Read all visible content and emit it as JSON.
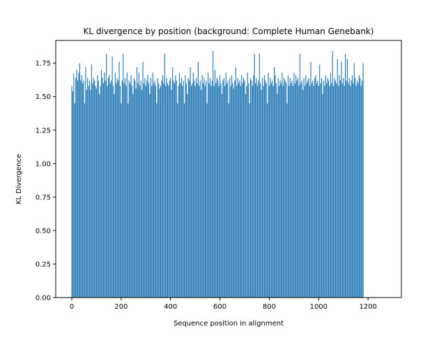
{
  "chart_data": {
    "type": "bar",
    "title": "KL divergence by position (background: Complete Human Genebank)",
    "xlabel": "Sequence position in alignment",
    "ylabel": "KL Divergence",
    "xlim": [
      -65,
      1335
    ],
    "ylim": [
      0,
      1.92
    ],
    "xticks": [
      0,
      200,
      400,
      600,
      800,
      1000,
      1200
    ],
    "xtick_labels": [
      "0",
      "200",
      "400",
      "600",
      "800",
      "1000",
      "1200"
    ],
    "yticks": [
      0,
      0.25,
      0.5,
      0.75,
      1.0,
      1.25,
      1.5,
      1.75
    ],
    "ytick_labels": [
      "0.00",
      "0.25",
      "0.50",
      "0.75",
      "1.00",
      "1.25",
      "1.50",
      "1.75"
    ],
    "grid": false,
    "bar_color": "#1f77b4",
    "series": [
      {
        "x_start": 0,
        "x_step": 4,
        "values": [
          1.58,
          1.54,
          1.67,
          1.45,
          1.64,
          1.7,
          1.62,
          1.68,
          1.75,
          1.62,
          1.66,
          1.6,
          1.62,
          1.45,
          1.72,
          1.55,
          1.64,
          1.58,
          1.62,
          1.55,
          1.74,
          1.6,
          1.64,
          1.62,
          1.58,
          1.56,
          1.66,
          1.62,
          1.52,
          1.58,
          1.7,
          1.64,
          1.6,
          1.68,
          1.62,
          1.82,
          1.58,
          1.64,
          1.66,
          1.6,
          1.62,
          1.8,
          1.58,
          1.52,
          1.68,
          1.6,
          1.64,
          1.62,
          1.76,
          1.58,
          1.45,
          1.62,
          1.82,
          1.6,
          1.64,
          1.58,
          1.68,
          1.45,
          1.62,
          1.6,
          1.66,
          1.58,
          1.52,
          1.64,
          1.62,
          1.56,
          1.72,
          1.6,
          1.68,
          1.58,
          1.62,
          1.55,
          1.76,
          1.6,
          1.64,
          1.58,
          1.62,
          1.66,
          1.6,
          1.52,
          1.64,
          1.58,
          1.68,
          1.6,
          1.62,
          1.58,
          1.45,
          1.64,
          1.6,
          1.56,
          1.58,
          1.62,
          1.66,
          1.6,
          1.82,
          1.58,
          1.64,
          1.6,
          1.58,
          1.62,
          1.64,
          1.55,
          1.72,
          1.62,
          1.6,
          1.66,
          1.62,
          1.45,
          1.58,
          1.68,
          1.6,
          1.64,
          1.58,
          1.62,
          1.45,
          1.66,
          1.6,
          1.52,
          1.64,
          1.62,
          1.72,
          1.58,
          1.6,
          1.68,
          1.62,
          1.58,
          1.64,
          1.6,
          1.76,
          1.58,
          1.62,
          1.55,
          1.66,
          1.6,
          1.64,
          1.58,
          1.62,
          1.45,
          1.68,
          1.6,
          1.64,
          1.58,
          1.62,
          1.84,
          1.58,
          1.7,
          1.6,
          1.64,
          1.62,
          1.58,
          1.66,
          1.6,
          1.52,
          1.62,
          1.64,
          1.58,
          1.68,
          1.6,
          1.62,
          1.45,
          1.64,
          1.58,
          1.66,
          1.6,
          1.56,
          1.62,
          1.72,
          1.58,
          1.64,
          1.6,
          1.62,
          1.58,
          1.66,
          1.6,
          1.64,
          1.62,
          1.52,
          1.58,
          1.68,
          1.6,
          1.45,
          1.64,
          1.62,
          1.58,
          1.66,
          1.82,
          1.6,
          1.64,
          1.58,
          1.62,
          1.82,
          1.6,
          1.55,
          1.64,
          1.58,
          1.66,
          1.62,
          1.6,
          1.45,
          1.68,
          1.58,
          1.64,
          1.6,
          1.62,
          1.58,
          1.72,
          1.66,
          1.6,
          1.52,
          1.64,
          1.58,
          1.62,
          1.6,
          1.68,
          1.58,
          1.64,
          1.62,
          1.6,
          1.45,
          1.66,
          1.58,
          1.64,
          1.6,
          1.62,
          1.58,
          1.68,
          1.6,
          1.66,
          1.62,
          1.64,
          1.58,
          1.82,
          1.6,
          1.62,
          1.55,
          1.64,
          1.58,
          1.66,
          1.6,
          1.62,
          1.64,
          1.58,
          1.76,
          1.6,
          1.62,
          1.58,
          1.64,
          1.66,
          1.6,
          1.62,
          1.58,
          1.74,
          1.6,
          1.64,
          1.52,
          1.62,
          1.58,
          1.66,
          1.6,
          1.64,
          1.62,
          1.58,
          1.68,
          1.6,
          1.84,
          1.58,
          1.64,
          1.62,
          1.6,
          1.78,
          1.58,
          1.66,
          1.62,
          1.76,
          1.6,
          1.64,
          1.58,
          1.82,
          1.62,
          1.78,
          1.6,
          1.64,
          1.58,
          1.62,
          1.66,
          1.6,
          1.75,
          1.64,
          1.58,
          1.62,
          1.6,
          1.66,
          1.64,
          1.58,
          1.62,
          1.75
        ]
      }
    ]
  }
}
